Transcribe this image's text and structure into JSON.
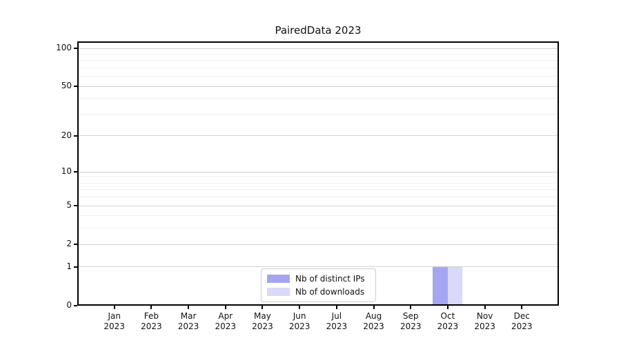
{
  "chart_data": {
    "type": "bar",
    "title": "PairedData 2023",
    "categories": [
      "Jan 2023",
      "Feb 2023",
      "Mar 2023",
      "Apr 2023",
      "May 2023",
      "Jun 2023",
      "Jul 2023",
      "Aug 2023",
      "Sep 2023",
      "Oct 2023",
      "Nov 2023",
      "Dec 2023"
    ],
    "series": [
      {
        "name": "Nb of distinct IPs",
        "color": "#a5a5f2",
        "values": [
          0,
          0,
          0,
          0,
          0,
          0,
          0,
          0,
          0,
          1,
          0,
          0
        ]
      },
      {
        "name": "Nb of downloads",
        "color": "#d9d9f9",
        "values": [
          0,
          0,
          0,
          0,
          0,
          0,
          0,
          0,
          0,
          1,
          0,
          0
        ]
      }
    ],
    "xlabel": "",
    "ylabel": "",
    "yscale": "log1p",
    "ylim": [
      0,
      114
    ],
    "yticks": [
      0,
      1,
      2,
      5,
      10,
      20,
      50,
      100
    ],
    "yticks_minor": [
      3,
      4,
      6,
      7,
      8,
      9,
      30,
      40,
      60,
      70,
      80,
      90
    ],
    "grid": true,
    "grid_major_color": "#d2d2d2",
    "grid_minor_color": "#f0f0f0",
    "legend_position": "lower center inside",
    "axis_color": "#000000",
    "background_color": "#ffffff"
  }
}
